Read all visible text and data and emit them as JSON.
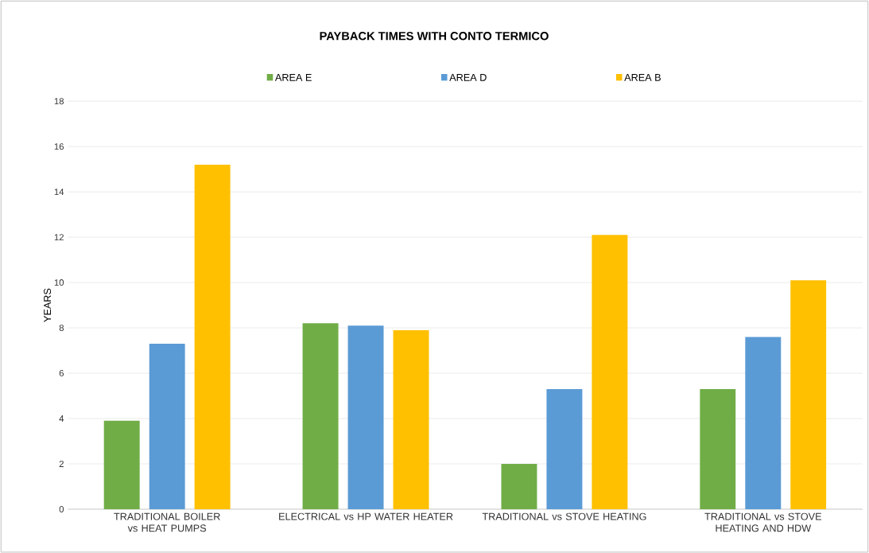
{
  "chart_data": {
    "type": "bar",
    "title": "PAYBACK TIMES  WITH CONTO TERMICO",
    "ylabel": "YEARS",
    "categories": [
      "TRADITIONAL BOILER vs HEAT PUMPS",
      "ELECTRICAL vs HP  WATER HEATER",
      "TRADITIONAL vs STOVE HEATING",
      "TRADITIONAL vs STOVE HEATING AND HDW"
    ],
    "series": [
      {
        "name": "AREA E",
        "color": "#70ad47",
        "values": [
          3.9,
          8.2,
          2.0,
          5.3
        ]
      },
      {
        "name": "AREA D",
        "color": "#5b9bd5",
        "values": [
          7.3,
          8.1,
          5.3,
          7.6
        ]
      },
      {
        "name": "AREA B",
        "color": "#ffc000",
        "values": [
          15.2,
          7.9,
          12.1,
          10.1
        ]
      }
    ],
    "ylim": [
      0,
      18
    ],
    "yticks": [
      0,
      2,
      4,
      6,
      8,
      10,
      12,
      14,
      16,
      18
    ],
    "grid": "y",
    "legend": "top"
  }
}
